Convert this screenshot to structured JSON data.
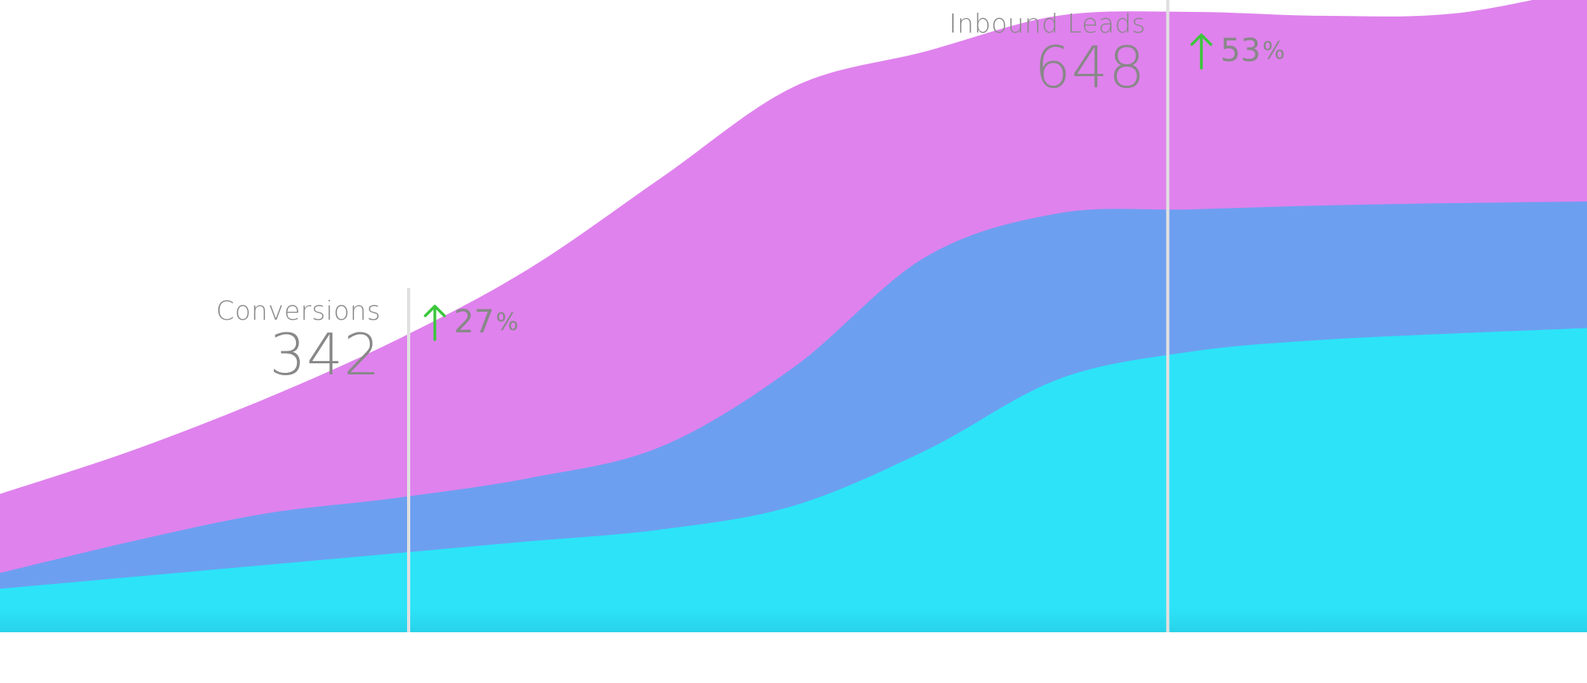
{
  "chart_data": {
    "type": "area",
    "stacked": true,
    "x": [
      0,
      1,
      2,
      3,
      4,
      5,
      6,
      7,
      8,
      9,
      10,
      11,
      12
    ],
    "ylim": [
      0,
      800
    ],
    "series": [
      {
        "color": "#2de3f8",
        "values": [
          55,
          70,
          85,
          100,
          115,
          130,
          160,
          230,
          320,
          355,
          370,
          378,
          385
        ]
      },
      {
        "color": "#6d9ff0",
        "values": [
          20,
          45,
          65,
          70,
          80,
          105,
          175,
          245,
          210,
          180,
          170,
          165,
          160
        ]
      },
      {
        "color": "#df82ed",
        "values": [
          100,
          115,
          145,
          200,
          265,
          340,
          355,
          260,
          250,
          250,
          240,
          240,
          270
        ]
      }
    ],
    "markers": [
      {
        "x": 3.09,
        "label": "Conversions",
        "value": "342",
        "change": "27",
        "change_unit": "%"
      },
      {
        "x": 8.83,
        "label": "Inbound Leads",
        "value": "648",
        "change": "53",
        "change_unit": "%"
      }
    ],
    "marker_color": "#e0e0e0",
    "up_arrow_color": "#3cc63c",
    "text_color": "#888888"
  }
}
